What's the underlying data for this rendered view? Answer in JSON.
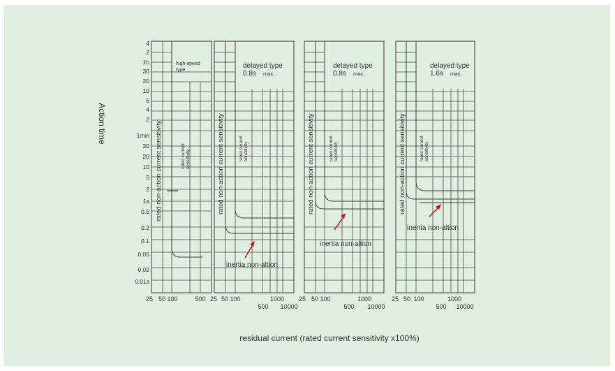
{
  "axis_labels": {
    "y": "Action time",
    "x": "residual current (rated current sensitivity x100%)"
  },
  "y_ticks": [
    "4",
    "2",
    "1h",
    "30",
    "20",
    "10",
    "6",
    "4",
    "2",
    "1min",
    "30",
    "20",
    "10",
    "5",
    "2",
    "1s",
    "0.5",
    "0.2",
    "0.1",
    "0.05",
    "0.02",
    "0.01s"
  ],
  "panels": [
    {
      "id": "high-speed",
      "vertical_label": "rated non-action current sensitivity",
      "sensitivity_label": "rated current sensitivity",
      "type_label_line1": "high-speed",
      "type_label_line2": "type",
      "x_ticks_top": [
        "25",
        "50",
        "100",
        "500"
      ],
      "x_ticks_bottom": []
    },
    {
      "id": "delayed-08-a",
      "vertical_label": "rated non-action current sensitivity",
      "sensitivity_label": "rated current sensitivity",
      "type_label": "delayed type",
      "time_label": "0.8s",
      "max_label": "max.",
      "annotation": "inertia non-altion",
      "x_ticks_top": [
        "25",
        "50",
        "100",
        "1000"
      ],
      "x_ticks_bottom": [
        "500",
        "10000"
      ]
    },
    {
      "id": "delayed-08-b",
      "vertical_label": "rated non-action current sensitivity",
      "sensitivity_label": "rated current sensitivity",
      "type_label": "delayed type",
      "time_label": "0.8s",
      "max_label": "max.",
      "annotation": "inertia non-altion",
      "x_ticks_top": [
        "25",
        "50",
        "100",
        "1000"
      ],
      "x_ticks_bottom": [
        "500",
        "10000"
      ]
    },
    {
      "id": "delayed-16",
      "vertical_label": "rated non-action current sensitivity",
      "sensitivity_label": "rated current sensitivity",
      "type_label": "delayed type",
      "time_label": "1.6s",
      "max_label": "max.",
      "annotation": "inertia non-altion",
      "x_ticks_top": [
        "25",
        "50",
        "100",
        "1000"
      ],
      "x_ticks_bottom": [
        "500",
        "10000"
      ]
    }
  ],
  "colors": {
    "background": "#e1efe1",
    "lines": "#3a3a3a",
    "arrow": "#d01010"
  }
}
